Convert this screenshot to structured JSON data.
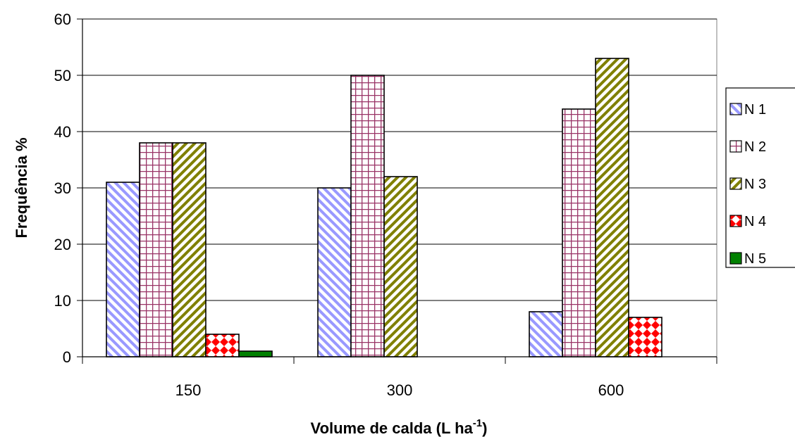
{
  "chart_data": {
    "type": "bar",
    "categories": [
      "150",
      "300",
      "600"
    ],
    "series": [
      {
        "name": "N 1",
        "values": [
          31,
          30,
          8
        ],
        "pattern": "diag-blue"
      },
      {
        "name": "N 2",
        "values": [
          38,
          50,
          44
        ],
        "pattern": "grid-pink"
      },
      {
        "name": "N 3",
        "values": [
          38,
          32,
          53
        ],
        "pattern": "diag-olive"
      },
      {
        "name": "N 4",
        "values": [
          4,
          0,
          7
        ],
        "pattern": "diamond-red"
      },
      {
        "name": "N 5",
        "values": [
          1,
          0,
          0
        ],
        "pattern": "solid-green"
      }
    ],
    "xlabel": "Volume de calda (L ha",
    "xlabel_superscript": "-1",
    "xlabel_suffix": ")",
    "ylabel": "Frequência %",
    "ylim": [
      0,
      60
    ],
    "yticks": [
      0,
      10,
      20,
      30,
      40,
      50,
      60
    ],
    "grid": true,
    "legend_position": "right",
    "colors": {
      "diag_blue": "#9999ff",
      "grid_pink": "#993366",
      "diag_olive": "#808000",
      "diamond_red": "#ff0000",
      "solid_green": "#008000",
      "gridline": "#000000"
    }
  }
}
